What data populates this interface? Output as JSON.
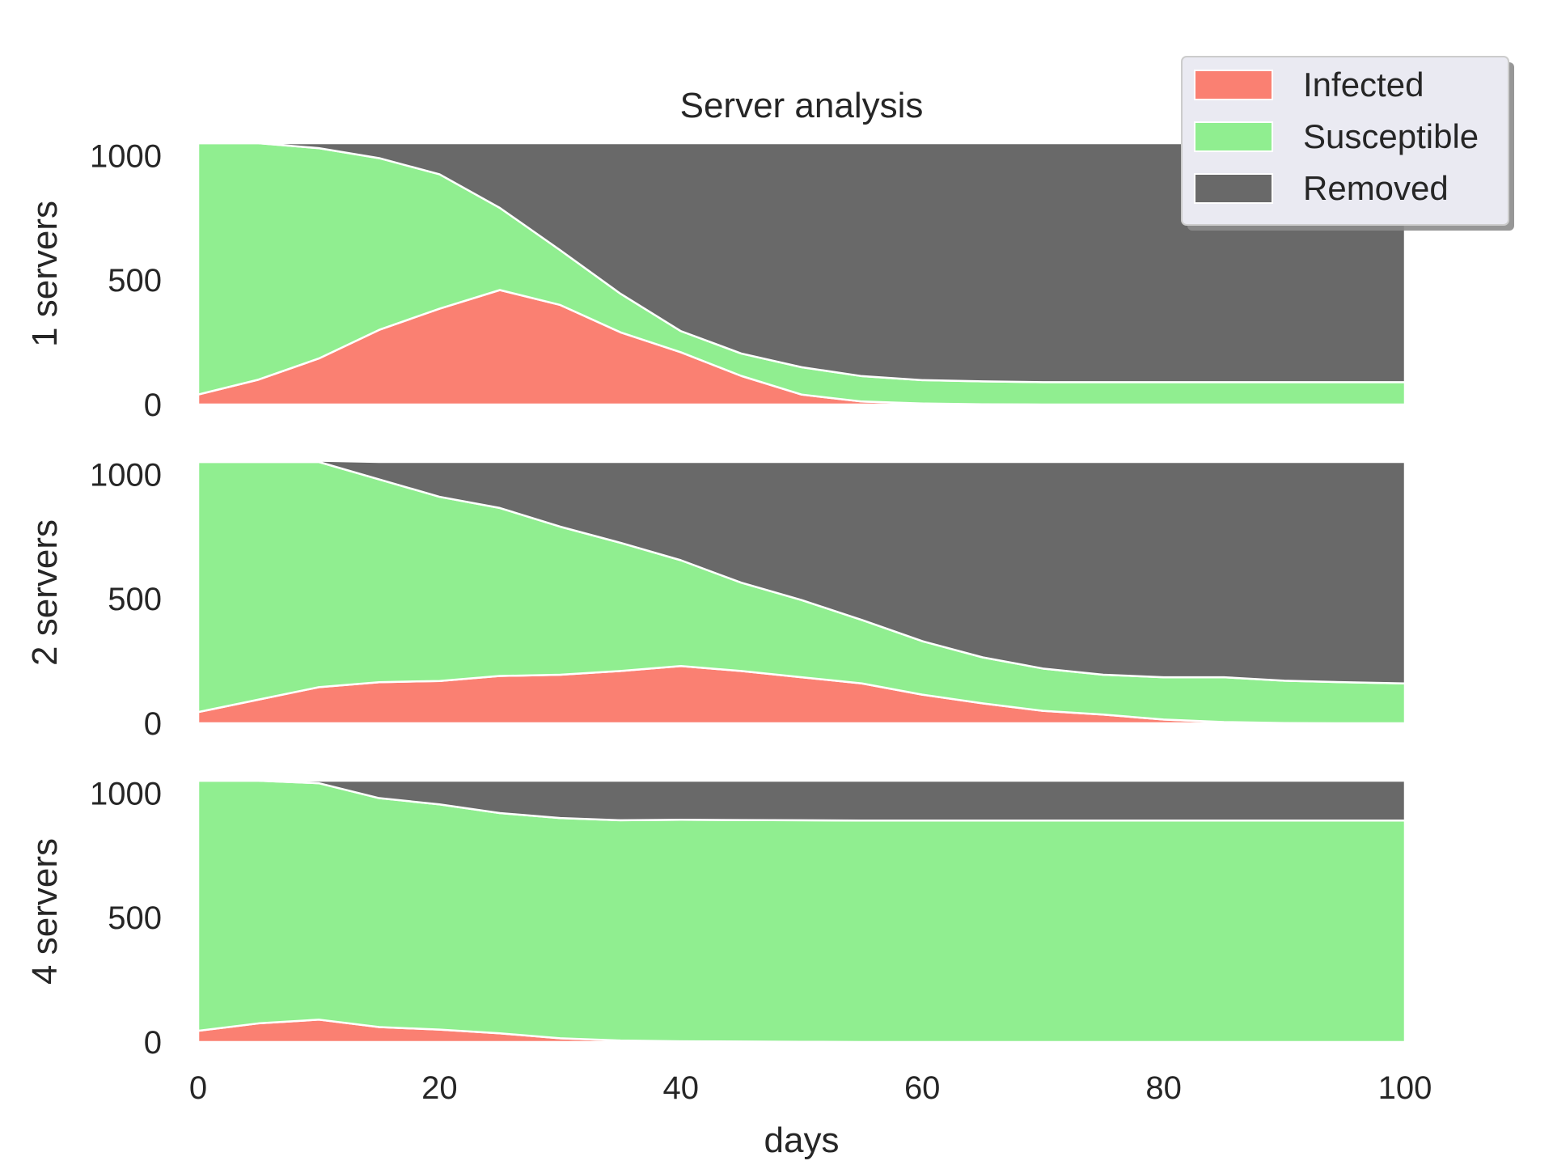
{
  "chart_data": {
    "type": "area",
    "stacked": true,
    "title": "Server analysis",
    "xlabel": "days",
    "xlim": [
      0,
      100
    ],
    "ylim": [
      0,
      1050
    ],
    "xticks": [
      0,
      20,
      40,
      60,
      80,
      100
    ],
    "yticks": [
      0,
      500,
      1000
    ],
    "colors": {
      "Infected": "#fa8072",
      "Susceptible": "#90ee90",
      "Removed": "#696969"
    },
    "legend": {
      "position": "top-right",
      "entries": [
        "Infected",
        "Susceptible",
        "Removed"
      ]
    },
    "x": [
      0,
      5,
      10,
      15,
      20,
      25,
      30,
      35,
      40,
      45,
      50,
      55,
      60,
      65,
      70,
      75,
      80,
      85,
      90,
      95,
      100
    ],
    "panels": [
      {
        "ylabel": "1 servers",
        "series": [
          {
            "name": "Infected",
            "values": [
              40,
              100,
              185,
              300,
              385,
              460,
              400,
              290,
              210,
              115,
              40,
              12,
              4,
              1,
              0,
              0,
              0,
              0,
              0,
              0,
              0
            ]
          },
          {
            "name": "Susceptible",
            "values": [
              1010,
              950,
              845,
              690,
              540,
              330,
              220,
              155,
              85,
              90,
              110,
              102,
              94,
              92,
              90,
              90,
              90,
              90,
              90,
              90,
              90
            ]
          },
          {
            "name": "Removed",
            "values": [
              0,
              0,
              20,
              60,
              125,
              260,
              430,
              605,
              755,
              845,
              900,
              936,
              952,
              957,
              960,
              960,
              960,
              960,
              960,
              960,
              960
            ]
          }
        ]
      },
      {
        "ylabel": "2 servers",
        "series": [
          {
            "name": "Infected",
            "values": [
              45,
              95,
              145,
              165,
              170,
              190,
              195,
              210,
              230,
              210,
              185,
              160,
              115,
              80,
              50,
              35,
              15,
              5,
              1,
              0,
              0
            ]
          },
          {
            "name": "Susceptible",
            "values": [
              1005,
              955,
              905,
              815,
              740,
              675,
              595,
              515,
              425,
              355,
              310,
              255,
              215,
              185,
              170,
              160,
              170,
              180,
              170,
              165,
              160
            ]
          },
          {
            "name": "Removed",
            "values": [
              0,
              0,
              5,
              70,
              140,
              185,
              260,
              325,
              395,
              485,
              555,
              635,
              720,
              785,
              830,
              855,
              865,
              865,
              879,
              885,
              890
            ]
          }
        ]
      },
      {
        "ylabel": "4 servers",
        "series": [
          {
            "name": "Infected",
            "values": [
              45,
              75,
              90,
              60,
              50,
              35,
              15,
              6,
              3,
              2,
              1,
              0,
              0,
              0,
              0,
              0,
              0,
              0,
              0,
              0,
              0
            ]
          },
          {
            "name": "Susceptible",
            "values": [
              1005,
              975,
              950,
              920,
              905,
              885,
              885,
              885,
              890,
              890,
              890,
              890,
              890,
              890,
              890,
              890,
              890,
              890,
              890,
              890,
              890
            ]
          },
          {
            "name": "Removed",
            "values": [
              0,
              0,
              10,
              70,
              95,
              130,
              150,
              159,
              157,
              158,
              159,
              160,
              160,
              160,
              160,
              160,
              160,
              160,
              160,
              160,
              160
            ]
          }
        ]
      }
    ]
  }
}
